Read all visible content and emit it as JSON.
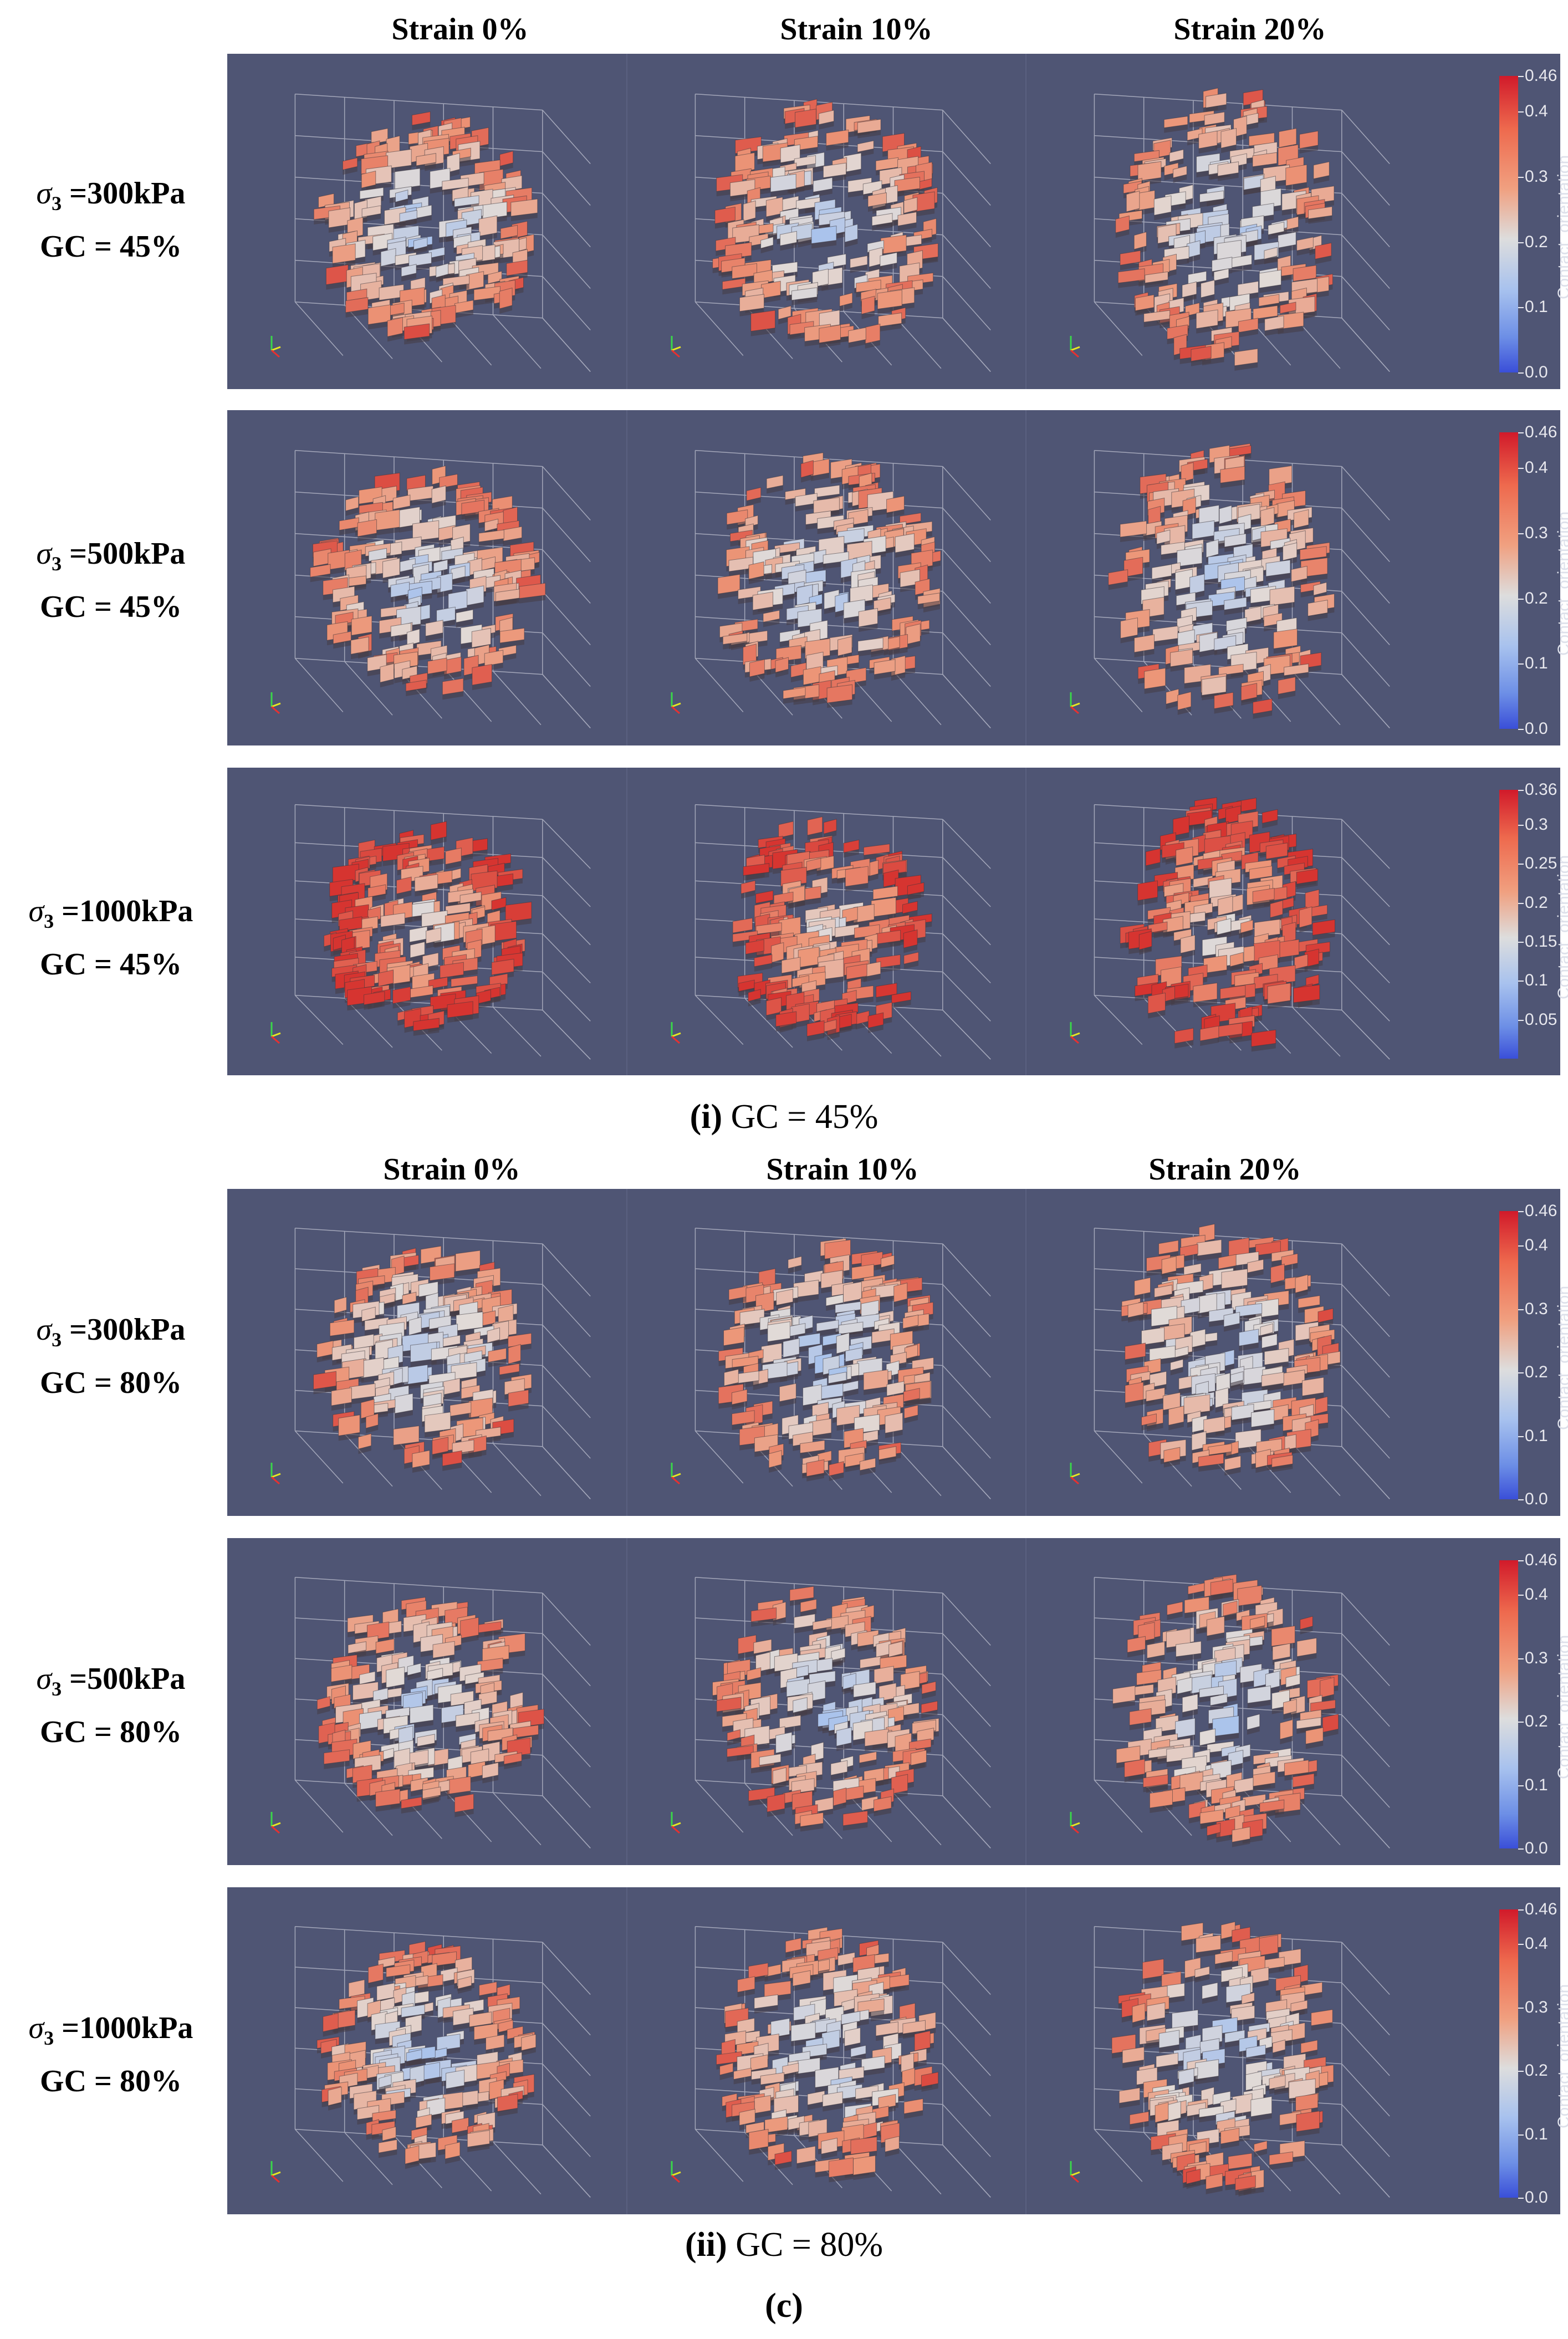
{
  "figure_label": "(c)",
  "colorbar_title": "Contact_orientation",
  "sections": [
    {
      "caption_bold": "(i)",
      "caption_text": " GC = 45%",
      "column_headers": [
        "Strain 0%",
        "Strain 10%",
        "Strain 20%"
      ],
      "rows": [
        {
          "sigma": "σ",
          "sub": "3",
          "pressure": " =300kPa",
          "gc": "GC = 45%",
          "colorbar_ticks": [
            "0.46",
            "0.4",
            "0.3",
            "0.2",
            "0.1",
            "0.0"
          ]
        },
        {
          "sigma": "σ",
          "sub": "3",
          "pressure": " =500kPa",
          "gc": "GC = 45%",
          "colorbar_ticks": [
            "0.46",
            "0.4",
            "0.3",
            "0.2",
            "0.1",
            "0.0"
          ]
        },
        {
          "sigma": "σ",
          "sub": "3",
          "pressure": " =1000kPa",
          "gc": "GC = 45%",
          "colorbar_ticks": [
            "0.36",
            "0.3",
            "0.25",
            "0.2",
            "0.15",
            "0.1",
            "0.05"
          ]
        }
      ]
    },
    {
      "caption_bold": "(ii)",
      "caption_text": " GC = 80%",
      "column_headers": [
        "Strain 0%",
        "Strain 10%",
        "Strain 20%"
      ],
      "rows": [
        {
          "sigma": "σ",
          "sub": "3",
          "pressure": " =300kPa",
          "gc": "GC = 80%",
          "colorbar_ticks": [
            "0.46",
            "0.4",
            "0.3",
            "0.2",
            "0.1",
            "0.0"
          ]
        },
        {
          "sigma": "σ",
          "sub": "3",
          "pressure": " =500kPa",
          "gc": "GC = 80%",
          "colorbar_ticks": [
            "0.46",
            "0.4",
            "0.3",
            "0.2",
            "0.1",
            "0.0"
          ]
        },
        {
          "sigma": "σ",
          "sub": "3",
          "pressure": " =1000kPa",
          "gc": "GC = 80%",
          "colorbar_ticks": [
            "0.46",
            "0.4",
            "0.3",
            "0.2",
            "0.1",
            "0.0"
          ]
        }
      ]
    }
  ],
  "colors": {
    "panel_background": "#4f5574",
    "high": "#d11a2a",
    "mid": "#dddddd",
    "low": "#3a4fd8"
  }
}
